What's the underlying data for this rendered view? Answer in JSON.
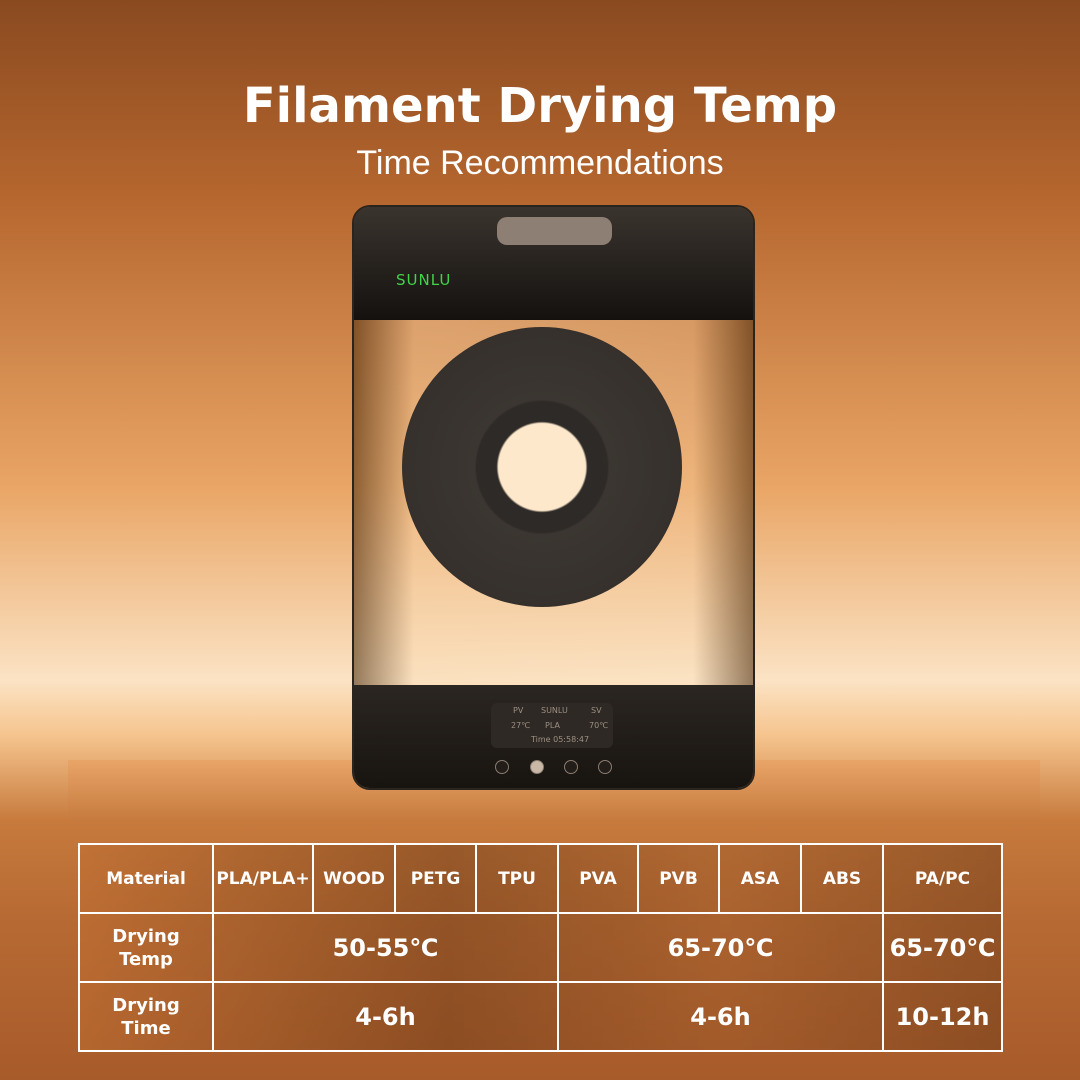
{
  "header": {
    "title": "Filament Drying Temp",
    "subtitle": "Time Recommendations"
  },
  "device": {
    "logo": "SUNLU",
    "screen": {
      "pv": "PV",
      "brand": "SUNLU",
      "sv": "SV",
      "pv_value": "27℃",
      "material": "PLA",
      "sv_value": "70℃",
      "time": "Time 05:58:47"
    }
  },
  "table": {
    "header_label": "Material",
    "materials": [
      "PLA/PLA+",
      "WOOD",
      "PETG",
      "TPU",
      "PVA",
      "PVB",
      "ASA",
      "ABS",
      "PA/PC"
    ],
    "temp_label_1": "Drying",
    "temp_label_2": "Temp",
    "time_label_1": "Drying",
    "time_label_2": "Time",
    "temps": [
      "50-55℃",
      "65-70℃",
      "65-70℃"
    ],
    "times": [
      "4-6h",
      "4-6h",
      "10-12h"
    ]
  },
  "colors": {
    "accent_logo": "#3fd44a",
    "text": "#ffffff"
  }
}
